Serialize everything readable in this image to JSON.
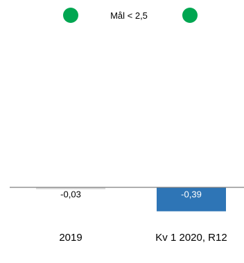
{
  "chart_data": {
    "type": "bar",
    "categories": [
      "2019",
      "Kv 1 2020, R12"
    ],
    "values": [
      -0.03,
      -0.39
    ],
    "value_labels": [
      "-0,03",
      "-0,39"
    ],
    "ylim": [
      -0.45,
      2.6
    ],
    "grid": false,
    "colors": {
      "bars": [
        "#d9d9d9",
        "#2e75b6"
      ],
      "axis": "#7f7f7f",
      "indicator": "#00a651",
      "label_on_bar": "#ffffff",
      "label_default": "#000000"
    },
    "legend": {
      "text": "Mål < 2,5",
      "indicator_icon": "green-circle-icon",
      "placement": "top-center"
    }
  }
}
